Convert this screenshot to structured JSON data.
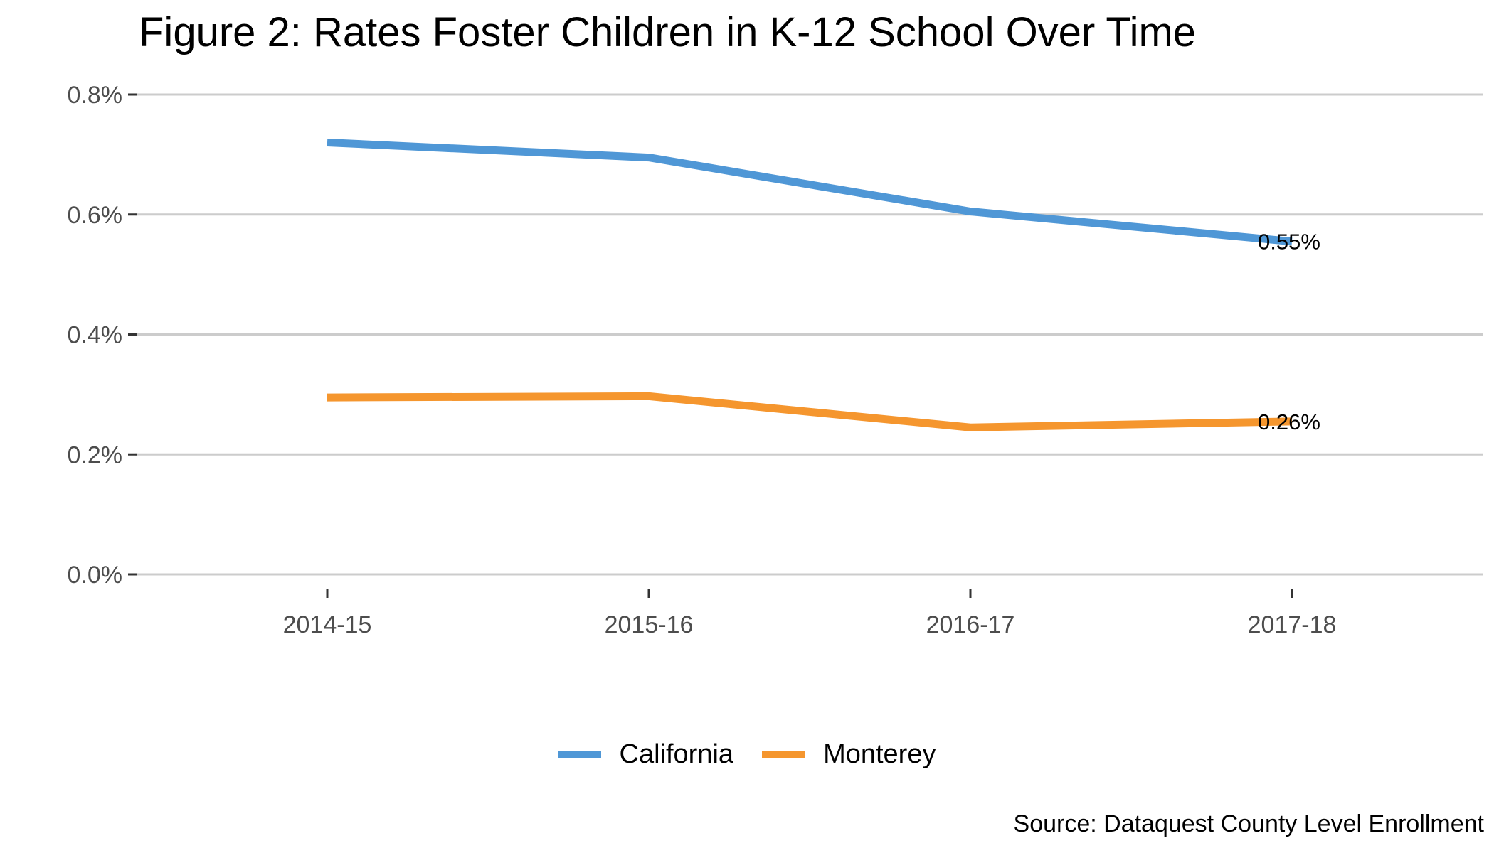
{
  "title": "Figure 2: Rates Foster Children in K-12 School Over Time",
  "caption": "Source: Dataquest County Level Enrollment",
  "chart_data": {
    "type": "line",
    "title": "Figure 2: Rates Foster Children in K-12 School Over Time",
    "xlabel": "",
    "ylabel": "",
    "categories": [
      "2014-15",
      "2015-16",
      "2016-17",
      "2017-18"
    ],
    "ylim": [
      0,
      0.8
    ],
    "y_ticks": [
      0.0,
      0.2,
      0.4,
      0.6,
      0.8
    ],
    "y_tick_labels": [
      "0.0%",
      "0.2%",
      "0.4%",
      "0.6%",
      "0.8%"
    ],
    "grid": "horizontal major gridlines",
    "legend_position": "bottom",
    "series": [
      {
        "name": "California",
        "color": "#4f97d6",
        "values": [
          0.72,
          0.695,
          0.605,
          0.555
        ],
        "end_label": "0.55%"
      },
      {
        "name": "Monterey",
        "color": "#f5962e",
        "values": [
          0.295,
          0.297,
          0.245,
          0.255
        ],
        "end_label": "0.26%"
      }
    ]
  }
}
